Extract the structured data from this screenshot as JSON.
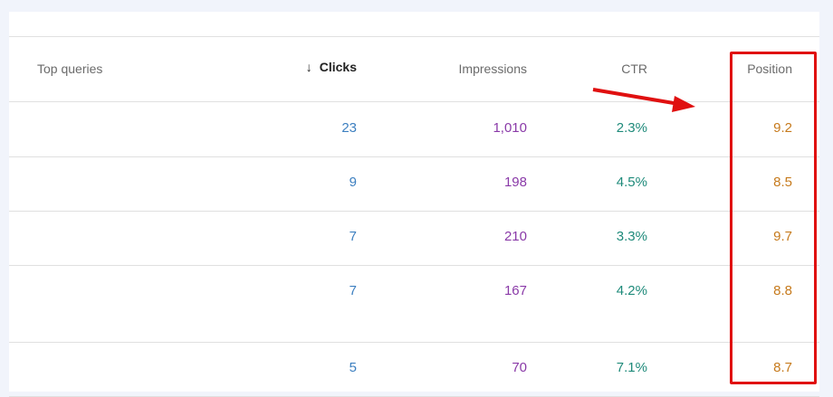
{
  "table": {
    "headers": {
      "query": "Top queries",
      "clicks": "Clicks",
      "impressions": "Impressions",
      "ctr": "CTR",
      "position": "Position"
    },
    "sort_icon": "arrow-down-icon",
    "rows": [
      {
        "clicks": "23",
        "impressions": "1,010",
        "ctr": "2.3%",
        "position": "9.2"
      },
      {
        "clicks": "9",
        "impressions": "198",
        "ctr": "4.5%",
        "position": "8.5"
      },
      {
        "clicks": "7",
        "impressions": "210",
        "ctr": "3.3%",
        "position": "9.7"
      },
      {
        "clicks": "7",
        "impressions": "167",
        "ctr": "4.2%",
        "position": "8.8"
      },
      {
        "clicks": "5",
        "impressions": "70",
        "ctr": "7.1%",
        "position": "8.7"
      }
    ]
  },
  "colors": {
    "clicks": "#3c7fc0",
    "impressions": "#8a3aa8",
    "ctr": "#1e8a7a",
    "position": "#c67a1c",
    "annotation": "#e01010"
  }
}
